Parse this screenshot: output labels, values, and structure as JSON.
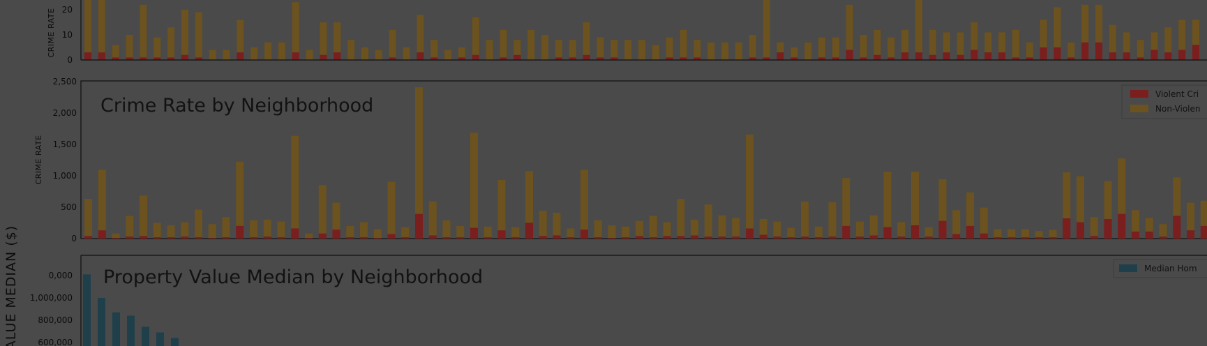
{
  "colors": {
    "violent": "#7a1e1e",
    "nonviolent": "#6b521f",
    "median_home": "#1f3f4b",
    "axis": "#101010"
  },
  "chart_data": [
    {
      "type": "bar",
      "stacked": true,
      "ylabel": "CRIME RATE",
      "ylim": [
        0,
        30
      ],
      "y_ticks": [
        "0",
        "10",
        "20"
      ],
      "series": [
        {
          "values": [
            3,
            3,
            1,
            1,
            1,
            1,
            1,
            2,
            1,
            0,
            0,
            3,
            0,
            0,
            0,
            3,
            0,
            2,
            3,
            0,
            0,
            0,
            1,
            0,
            3,
            1,
            0,
            1,
            2,
            0,
            1,
            2,
            0,
            0,
            1,
            1,
            2,
            1,
            1,
            0,
            0,
            0,
            1,
            1,
            1,
            0,
            0,
            0,
            1,
            1,
            3,
            1,
            0,
            1,
            1,
            4,
            1,
            2,
            1,
            3,
            3,
            2,
            3,
            2,
            4,
            3,
            3,
            1,
            1,
            5,
            5,
            1,
            7,
            7,
            3,
            3,
            1,
            4,
            3,
            4,
            6
          ]
        },
        {
          "values": [
            21,
            21,
            5,
            9,
            21,
            8,
            12,
            18,
            18,
            4,
            4,
            13,
            5,
            7,
            7,
            20,
            4,
            13,
            12,
            8,
            5,
            4,
            11,
            5,
            15,
            7,
            4,
            4,
            15,
            8,
            11,
            6,
            12,
            10,
            7,
            7,
            13,
            8,
            7,
            8,
            8,
            6,
            8,
            11,
            7,
            7,
            7,
            7,
            9,
            27,
            4,
            4,
            7,
            8,
            8,
            18,
            9,
            10,
            8,
            9,
            22,
            10,
            8,
            9,
            11,
            8,
            8,
            11,
            6,
            11,
            16,
            6,
            15,
            15,
            11,
            8,
            7,
            7,
            10,
            12,
            10
          ]
        }
      ]
    },
    {
      "type": "bar",
      "stacked": true,
      "title": "Crime Rate by Neighborhood",
      "ylabel": "CRIME RATE",
      "ylim": [
        0,
        2500
      ],
      "y_ticks": [
        "0",
        "500",
        "1,000",
        "1,500",
        "2,000",
        "2,500"
      ],
      "legend": [
        "Violent Cri",
        "Non-Violen"
      ],
      "legend_position": "top-right",
      "series": [
        {
          "name": "Violent Cri",
          "values": [
            40,
            130,
            10,
            30,
            40,
            20,
            20,
            30,
            20,
            10,
            20,
            200,
            20,
            30,
            20,
            160,
            10,
            80,
            140,
            20,
            20,
            10,
            70,
            20,
            390,
            50,
            20,
            20,
            170,
            20,
            130,
            20,
            250,
            40,
            50,
            20,
            140,
            20,
            10,
            20,
            40,
            20,
            40,
            40,
            50,
            30,
            30,
            30,
            160,
            60,
            30,
            20,
            30,
            20,
            30,
            200,
            30,
            50,
            180,
            30,
            210,
            30,
            280,
            70,
            200,
            80,
            20,
            20,
            20,
            20,
            20,
            320,
            260,
            40,
            310,
            390,
            110,
            110,
            30,
            360,
            130,
            200,
            340
          ]
        },
        {
          "name": "Non-Violen",
          "values": [
            590,
            960,
            70,
            330,
            640,
            230,
            190,
            230,
            440,
            220,
            320,
            1020,
            270,
            270,
            250,
            1470,
            70,
            770,
            430,
            180,
            240,
            140,
            830,
            160,
            2010,
            540,
            270,
            180,
            1510,
            170,
            800,
            160,
            820,
            400,
            360,
            140,
            950,
            270,
            200,
            170,
            240,
            340,
            220,
            590,
            250,
            510,
            340,
            300,
            1490,
            250,
            240,
            150,
            560,
            170,
            550,
            760,
            240,
            320,
            880,
            230,
            850,
            150,
            660,
            380,
            530,
            410,
            130,
            130,
            130,
            100,
            120,
            730,
            730,
            300,
            600,
            880,
            340,
            220,
            200,
            610,
            440,
            400,
            500
          ]
        }
      ]
    },
    {
      "type": "bar",
      "title": "Property Value Median by Neighborhood",
      "ylabel": "ALUE MEDIAN ($)",
      "ylim": [
        550000,
        1230000
      ],
      "y_ticks": [
        "600,000",
        "800,000",
        "1,000,000",
        "0,000"
      ],
      "legend": [
        "Median Hom"
      ],
      "legend_position": "top-right",
      "series": [
        {
          "name": "Median Hom",
          "values": [
            1210000,
            1000000,
            870000,
            840000,
            740000,
            690000,
            640000
          ]
        }
      ]
    }
  ]
}
